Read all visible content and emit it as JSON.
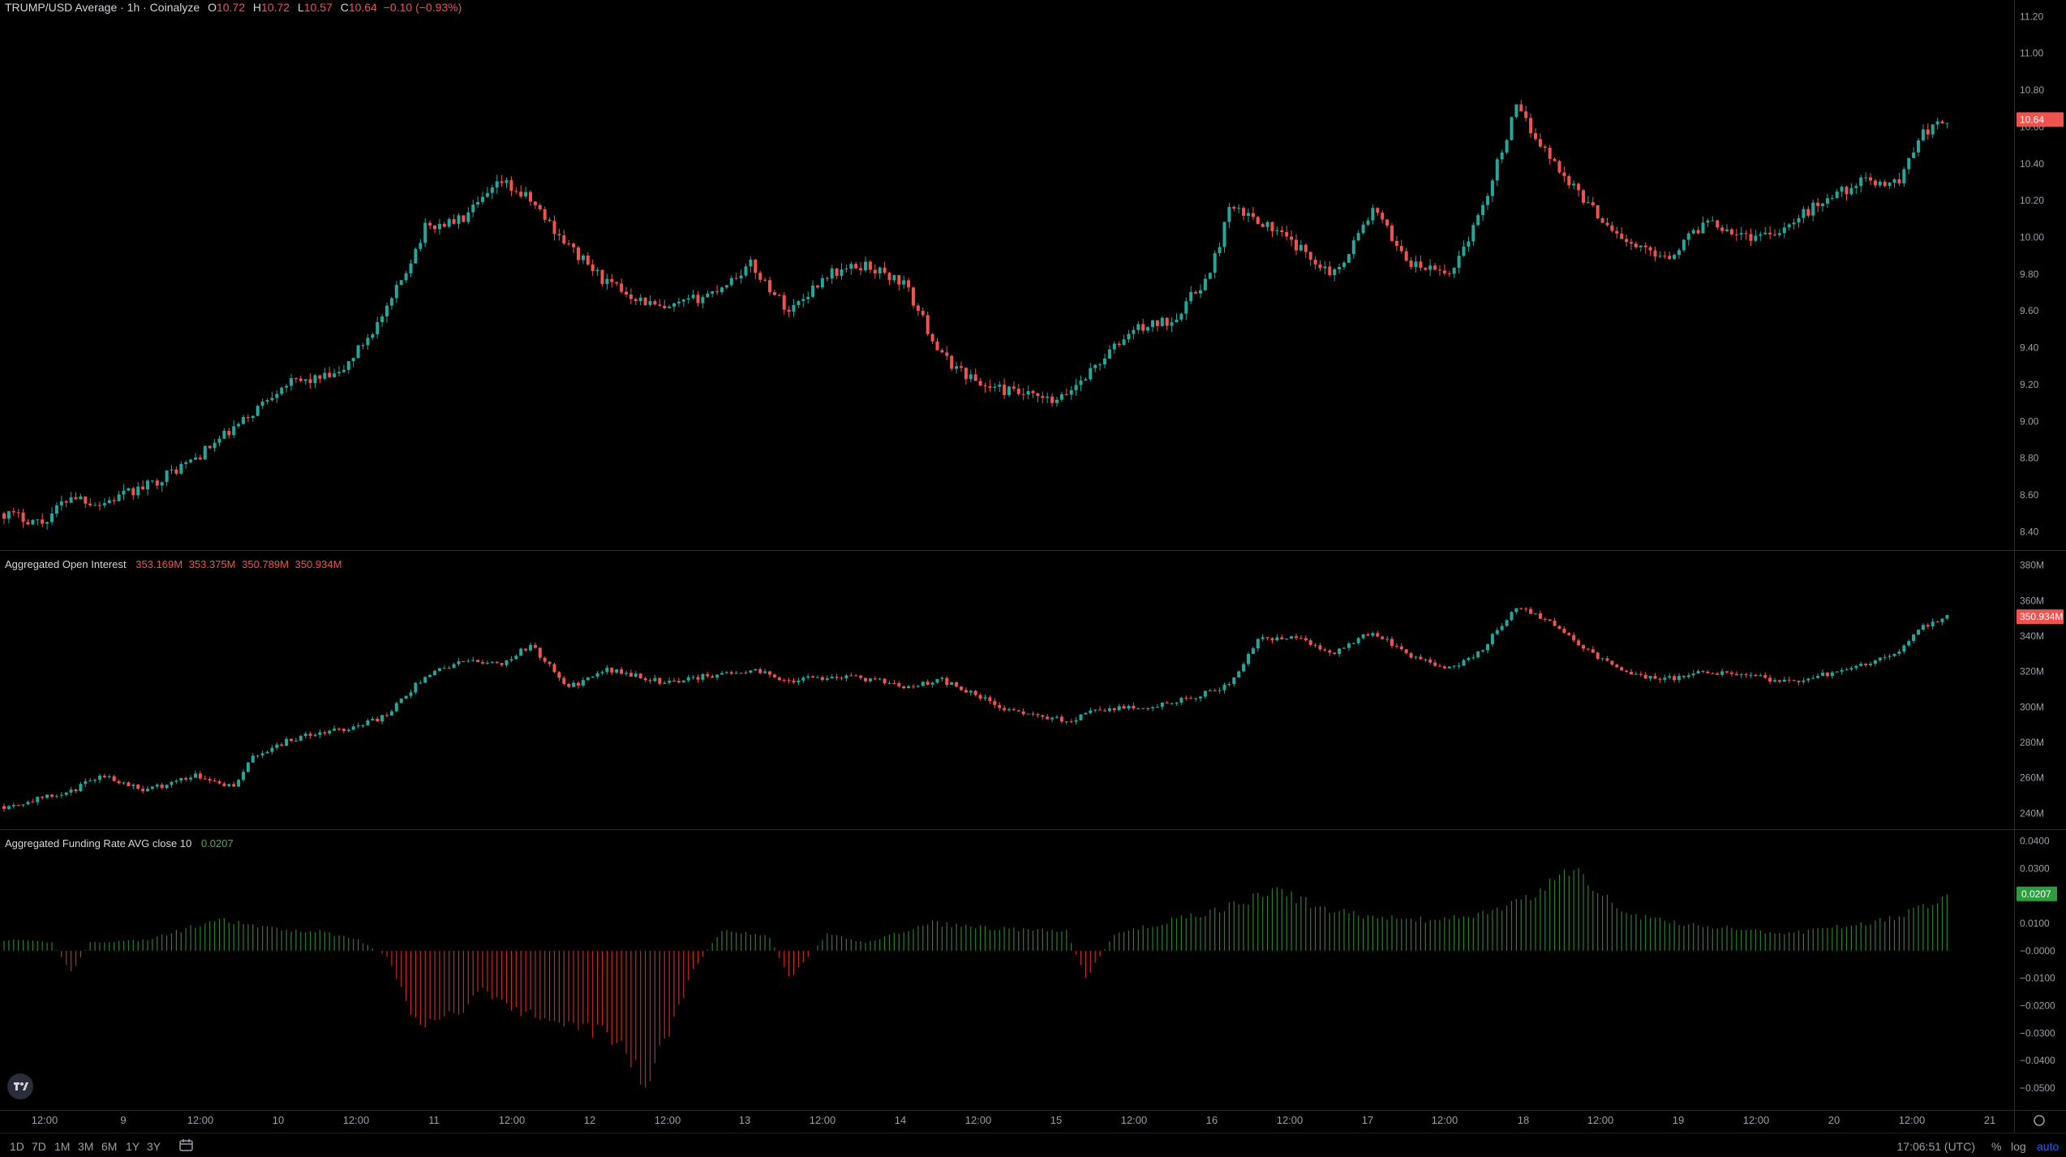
{
  "price_legend": {
    "title": "TRUMP/USD Average · 1h · Coinalyze",
    "o_label": "O",
    "o": "10.72",
    "h_label": "H",
    "h": "10.72",
    "l_label": "L",
    "l": "10.57",
    "c_label": "C",
    "c": "10.64",
    "change": "−0.10 (−0.93%)"
  },
  "oi_legend": {
    "title": "Aggregated Open Interest",
    "values": [
      "353.169M",
      "353.375M",
      "350.789M",
      "350.934M"
    ]
  },
  "fr_legend": {
    "title": "Aggregated Funding Rate AVG close 10",
    "value": "0.0207"
  },
  "bottom_bar": {
    "ranges": [
      "1D",
      "7D",
      "1M",
      "3M",
      "6M",
      "1Y",
      "3Y"
    ],
    "clock": "17:06:51 (UTC)",
    "options": [
      "%",
      "log",
      "auto"
    ]
  },
  "colors": {
    "up": "#26a69a",
    "down": "#ef5350",
    "fr_up": "#2e7d32",
    "fr_down": "#c62828",
    "badge_green": "#2e9d3f"
  },
  "chart_data": [
    {
      "type": "candlestick",
      "title": "TRUMP/USD Average · 1h · Coinalyze",
      "ylim": [
        8.3,
        11.25
      ],
      "y_ticks": [
        "8.40",
        "8.60",
        "8.80",
        "9.00",
        "9.20",
        "9.40",
        "9.60",
        "9.80",
        "10.00",
        "10.20",
        "10.40",
        "10.60",
        "10.80",
        "11.00",
        "11.20"
      ],
      "last_value": "10.64",
      "x_ticks": [
        "12:00",
        "9",
        "12:00",
        "10",
        "12:00",
        "11",
        "12:00",
        "12",
        "12:00",
        "13",
        "12:00",
        "14",
        "12:00",
        "15",
        "12:00",
        "16",
        "12:00",
        "17",
        "12:00",
        "18",
        "12:00",
        "19",
        "12:00",
        "20",
        "12:00",
        "21"
      ],
      "anchors": [
        [
          0,
          8.5
        ],
        [
          8,
          8.45
        ],
        [
          14,
          8.6
        ],
        [
          20,
          8.55
        ],
        [
          30,
          8.65
        ],
        [
          40,
          8.8
        ],
        [
          50,
          9.0
        ],
        [
          58,
          9.2
        ],
        [
          70,
          9.25
        ],
        [
          80,
          9.6
        ],
        [
          88,
          10.05
        ],
        [
          96,
          10.1
        ],
        [
          104,
          10.3
        ],
        [
          110,
          10.2
        ],
        [
          118,
          9.95
        ],
        [
          126,
          9.75
        ],
        [
          138,
          9.6
        ],
        [
          148,
          9.7
        ],
        [
          156,
          9.85
        ],
        [
          164,
          9.6
        ],
        [
          172,
          9.8
        ],
        [
          180,
          9.85
        ],
        [
          188,
          9.75
        ],
        [
          196,
          9.35
        ],
        [
          204,
          9.2
        ],
        [
          212,
          9.15
        ],
        [
          220,
          9.1
        ],
        [
          228,
          9.3
        ],
        [
          236,
          9.5
        ],
        [
          244,
          9.55
        ],
        [
          252,
          9.8
        ],
        [
          256,
          10.15
        ],
        [
          262,
          10.1
        ],
        [
          270,
          9.95
        ],
        [
          278,
          9.8
        ],
        [
          286,
          10.15
        ],
        [
          294,
          9.85
        ],
        [
          302,
          9.8
        ],
        [
          308,
          10.1
        ],
        [
          316,
          10.7
        ],
        [
          324,
          10.4
        ],
        [
          332,
          10.15
        ],
        [
          340,
          9.95
        ],
        [
          348,
          9.9
        ],
        [
          356,
          10.1
        ],
        [
          364,
          10.0
        ],
        [
          372,
          10.05
        ],
        [
          380,
          10.2
        ],
        [
          388,
          10.3
        ],
        [
          396,
          10.3
        ],
        [
          400,
          10.55
        ],
        [
          406,
          10.64
        ]
      ],
      "n": 407,
      "seed": 17
    },
    {
      "type": "candlestick",
      "title": "Aggregated Open Interest",
      "ylim": [
        231,
        384
      ],
      "y_ticks": [
        "240M",
        "260M",
        "280M",
        "300M",
        "320M",
        "340M",
        "360M",
        "380M"
      ],
      "last_value": "350.934M",
      "anchors": [
        [
          0,
          244
        ],
        [
          14,
          252
        ],
        [
          20,
          262
        ],
        [
          30,
          253
        ],
        [
          40,
          262
        ],
        [
          48,
          255
        ],
        [
          52,
          272
        ],
        [
          60,
          282
        ],
        [
          72,
          288
        ],
        [
          80,
          295
        ],
        [
          88,
          318
        ],
        [
          96,
          326
        ],
        [
          104,
          325
        ],
        [
          110,
          335
        ],
        [
          118,
          311
        ],
        [
          126,
          321
        ],
        [
          138,
          314
        ],
        [
          148,
          318
        ],
        [
          156,
          321
        ],
        [
          164,
          315
        ],
        [
          172,
          317
        ],
        [
          180,
          316
        ],
        [
          188,
          312
        ],
        [
          196,
          315
        ],
        [
          210,
          298
        ],
        [
          222,
          292
        ],
        [
          228,
          298
        ],
        [
          236,
          300
        ],
        [
          244,
          302
        ],
        [
          256,
          312
        ],
        [
          262,
          338
        ],
        [
          270,
          340
        ],
        [
          278,
          330
        ],
        [
          286,
          343
        ],
        [
          294,
          328
        ],
        [
          302,
          322
        ],
        [
          308,
          330
        ],
        [
          316,
          357
        ],
        [
          324,
          347
        ],
        [
          332,
          330
        ],
        [
          340,
          318
        ],
        [
          348,
          316
        ],
        [
          356,
          320
        ],
        [
          364,
          318
        ],
        [
          372,
          314
        ],
        [
          380,
          318
        ],
        [
          388,
          324
        ],
        [
          396,
          330
        ],
        [
          400,
          345
        ],
        [
          406,
          351
        ]
      ],
      "n": 407,
      "seed": 29
    },
    {
      "type": "bar",
      "title": "Aggregated Funding Rate AVG close 10",
      "ylim": [
        -0.058,
        0.0425
      ],
      "y_ticks": [
        "0.0400",
        "0.0300",
        "0.0200",
        "0.0100",
        "−0.0000",
        "−0.0100",
        "−0.0200",
        "−0.0300",
        "−0.0400",
        "−0.0500"
      ],
      "last_value": "0.0207",
      "anchors": [
        [
          0,
          0.004
        ],
        [
          10,
          0.003
        ],
        [
          14,
          -0.008
        ],
        [
          18,
          0.003
        ],
        [
          30,
          0.004
        ],
        [
          40,
          0.009
        ],
        [
          46,
          0.011
        ],
        [
          56,
          0.008
        ],
        [
          66,
          0.007
        ],
        [
          74,
          0.004
        ],
        [
          80,
          -0.002
        ],
        [
          86,
          -0.026
        ],
        [
          94,
          -0.024
        ],
        [
          100,
          -0.015
        ],
        [
          108,
          -0.022
        ],
        [
          116,
          -0.026
        ],
        [
          126,
          -0.03
        ],
        [
          134,
          -0.047
        ],
        [
          138,
          -0.035
        ],
        [
          144,
          -0.007
        ],
        [
          150,
          0.008
        ],
        [
          160,
          0.005
        ],
        [
          164,
          -0.01
        ],
        [
          172,
          0.006
        ],
        [
          180,
          0.003
        ],
        [
          194,
          0.01
        ],
        [
          208,
          0.008
        ],
        [
          222,
          0.007
        ],
        [
          226,
          -0.01
        ],
        [
          232,
          0.006
        ],
        [
          244,
          0.011
        ],
        [
          256,
          0.016
        ],
        [
          266,
          0.022
        ],
        [
          276,
          0.015
        ],
        [
          288,
          0.012
        ],
        [
          300,
          0.011
        ],
        [
          310,
          0.014
        ],
        [
          320,
          0.02
        ],
        [
          328,
          0.031
        ],
        [
          334,
          0.02
        ],
        [
          340,
          0.013
        ],
        [
          350,
          0.01
        ],
        [
          362,
          0.008
        ],
        [
          372,
          0.006
        ],
        [
          384,
          0.009
        ],
        [
          396,
          0.012
        ],
        [
          406,
          0.0207
        ]
      ],
      "n": 407,
      "seed": 41
    }
  ]
}
